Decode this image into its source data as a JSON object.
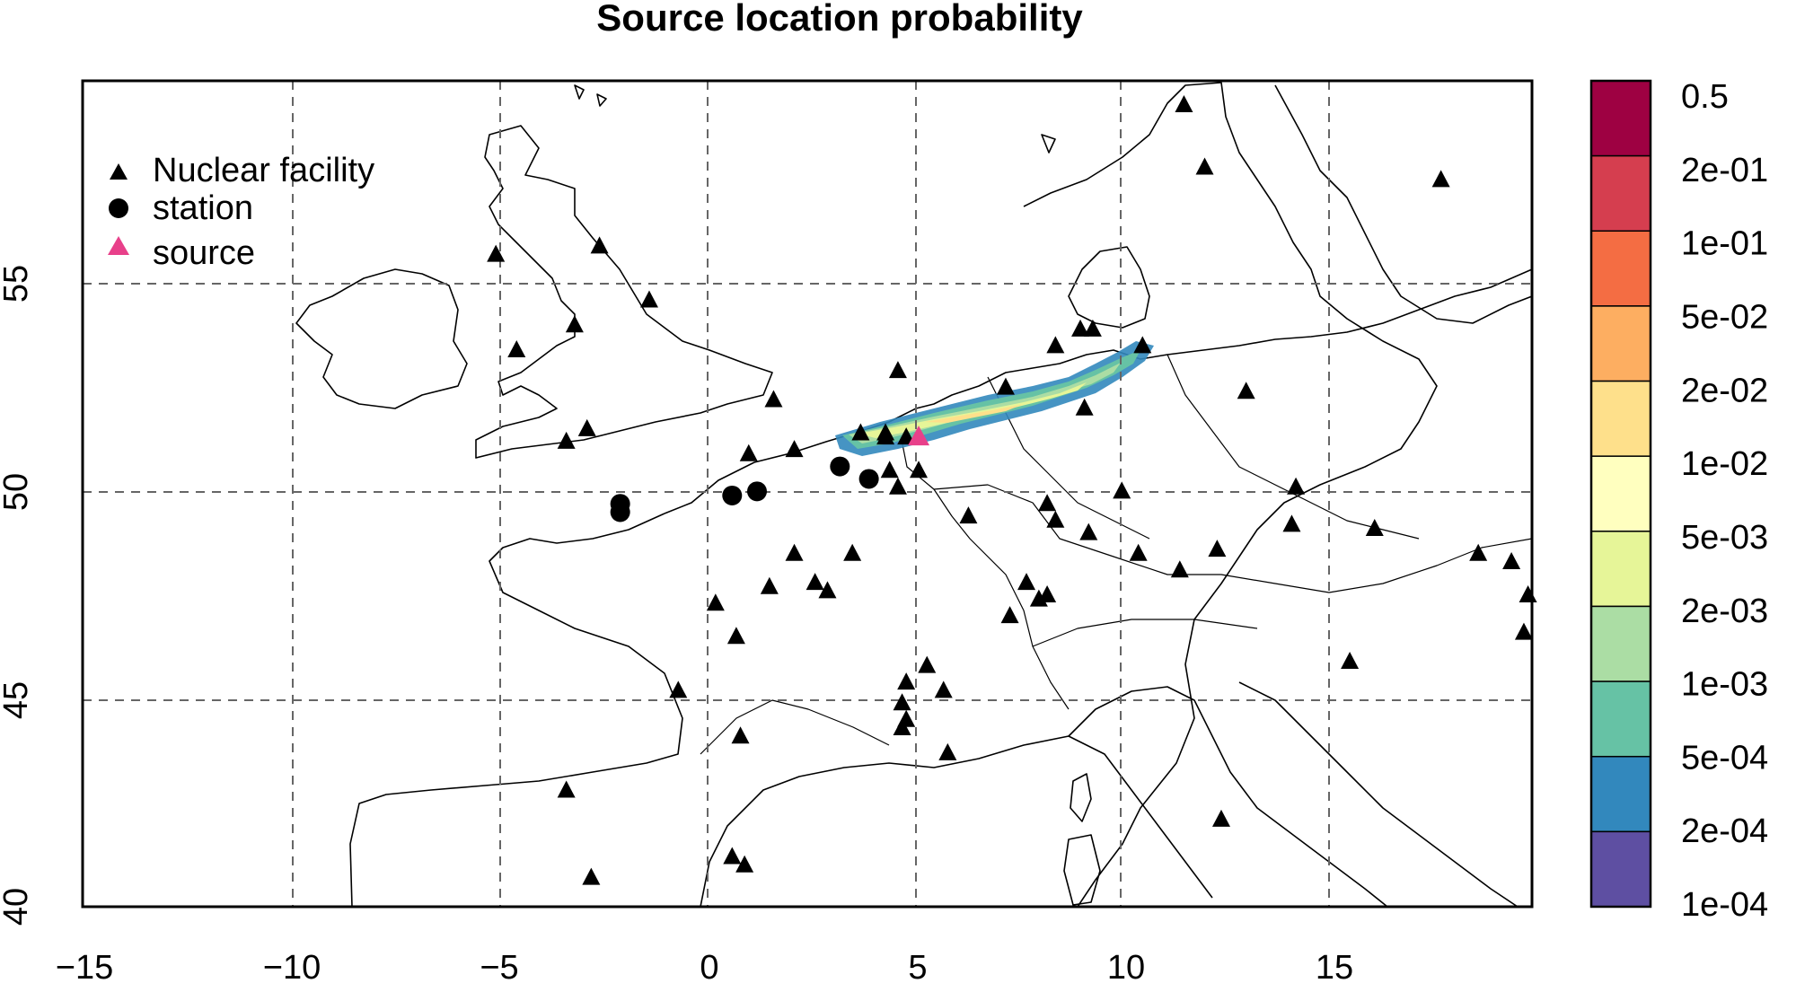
{
  "title": "Source location probability",
  "map": {
    "x_ticks": [
      "−15",
      "−10",
      "−5",
      "0",
      "5",
      "10",
      "15"
    ],
    "x_tick_values": [
      -15,
      -10,
      -5,
      0,
      5,
      10,
      15
    ],
    "y_ticks": [
      "40",
      "45",
      "50",
      "55"
    ],
    "y_tick_values": [
      40,
      45,
      50,
      55
    ],
    "lon_range": [
      -10,
      25
    ],
    "lat_range": [
      40,
      60
    ],
    "grid": "dashed",
    "nuclear_facilities": [
      [
        -5.1,
        55.7
      ],
      [
        -2.6,
        55.9
      ],
      [
        -1.4,
        54.6
      ],
      [
        -3.2,
        54.0
      ],
      [
        -4.6,
        53.4
      ],
      [
        -2.9,
        51.5
      ],
      [
        -3.4,
        51.2
      ],
      [
        1.6,
        52.2
      ],
      [
        1.0,
        50.9
      ],
      [
        2.1,
        51.0
      ],
      [
        3.7,
        51.4
      ],
      [
        4.3,
        51.3
      ],
      [
        4.4,
        50.5
      ],
      [
        4.6,
        50.1
      ],
      [
        4.8,
        51.3
      ],
      [
        4.6,
        52.9
      ],
      [
        4.3,
        51.4
      ],
      [
        5.1,
        50.5
      ],
      [
        6.3,
        49.4
      ],
      [
        7.2,
        52.5
      ],
      [
        8.4,
        53.5
      ],
      [
        9.0,
        53.9
      ],
      [
        9.3,
        53.9
      ],
      [
        9.1,
        52.0
      ],
      [
        10.5,
        53.5
      ],
      [
        11.5,
        59.3
      ],
      [
        12.0,
        57.8
      ],
      [
        17.7,
        57.5
      ],
      [
        13.0,
        52.4
      ],
      [
        8.2,
        49.7
      ],
      [
        8.4,
        49.3
      ],
      [
        9.2,
        49.0
      ],
      [
        10.0,
        50.0
      ],
      [
        10.4,
        48.5
      ],
      [
        11.4,
        48.1
      ],
      [
        12.3,
        48.6
      ],
      [
        14.2,
        50.1
      ],
      [
        14.1,
        49.2
      ],
      [
        16.1,
        49.1
      ],
      [
        18.6,
        48.5
      ],
      [
        19.4,
        48.3
      ],
      [
        19.8,
        47.5
      ],
      [
        19.7,
        46.6
      ],
      [
        15.5,
        45.9
      ],
      [
        7.7,
        47.8
      ],
      [
        8.2,
        47.5
      ],
      [
        8.0,
        47.4
      ],
      [
        7.3,
        47.0
      ],
      [
        2.1,
        48.5
      ],
      [
        3.5,
        48.5
      ],
      [
        2.9,
        47.6
      ],
      [
        2.6,
        47.8
      ],
      [
        1.5,
        47.7
      ],
      [
        0.2,
        47.3
      ],
      [
        0.7,
        46.5
      ],
      [
        -0.7,
        45.2
      ],
      [
        4.8,
        45.4
      ],
      [
        4.7,
        44.9
      ],
      [
        4.8,
        44.5
      ],
      [
        4.7,
        44.3
      ],
      [
        5.3,
        45.8
      ],
      [
        5.7,
        45.2
      ],
      [
        5.8,
        43.7
      ],
      [
        0.8,
        44.1
      ],
      [
        -3.4,
        42.8
      ],
      [
        0.6,
        41.2
      ],
      [
        0.9,
        41.0
      ],
      [
        -2.8,
        40.7
      ],
      [
        12.4,
        42.1
      ]
    ],
    "stations": [
      [
        -2.1,
        49.7
      ],
      [
        -2.1,
        49.5
      ],
      [
        0.6,
        49.9
      ],
      [
        1.2,
        50.0
      ],
      [
        3.2,
        50.6
      ],
      [
        3.9,
        50.3
      ]
    ],
    "source": [
      5.1,
      51.3
    ]
  },
  "legend": {
    "items": [
      {
        "label": "Nuclear facility",
        "symbol": "triangle",
        "color": "#000000"
      },
      {
        "label": "station",
        "symbol": "circle",
        "color": "#000000"
      },
      {
        "label": "source",
        "symbol": "triangle",
        "color": "#e8408a"
      }
    ]
  },
  "colorbar": {
    "labels": [
      "0.5",
      "2e-01",
      "1e-01",
      "5e-02",
      "2e-02",
      "1e-02",
      "5e-03",
      "2e-03",
      "1e-03",
      "5e-04",
      "2e-04",
      "1e-04"
    ],
    "colors": [
      "#9e0142",
      "#d53e4f",
      "#f46d43",
      "#fdae61",
      "#fee08b",
      "#ffffbf",
      "#e6f598",
      "#abdda4",
      "#66c2a5",
      "#3288bd",
      "#5e4fa2"
    ]
  },
  "plume": {
    "colors": [
      "#3288bd",
      "#66c2a5",
      "#abdda4",
      "#e6f598",
      "#fee08b"
    ]
  }
}
